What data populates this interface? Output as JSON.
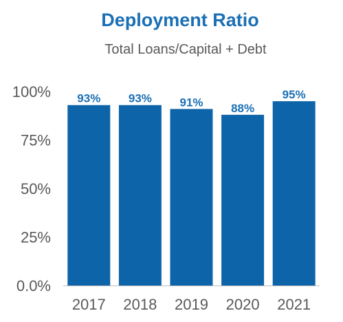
{
  "chart_data": {
    "type": "bar",
    "title": "Deployment Ratio",
    "subtitle": "Total Loans/Capital + Debt",
    "categories": [
      "2017",
      "2018",
      "2019",
      "2020",
      "2021"
    ],
    "values": [
      93,
      93,
      91,
      88,
      95
    ],
    "data_labels": [
      "93%",
      "93%",
      "91%",
      "88%",
      "95%"
    ],
    "y_ticks": [
      {
        "value": 0,
        "label": "0.0%"
      },
      {
        "value": 25,
        "label": "25%"
      },
      {
        "value": 50,
        "label": "50%"
      },
      {
        "value": 75,
        "label": "75%"
      },
      {
        "value": 100,
        "label": "100%"
      }
    ],
    "ylim": [
      0,
      100
    ],
    "grid": false,
    "legend": "none",
    "colors": {
      "bar": "#0e64a8",
      "title": "#1a6fb5",
      "data_label": "#1a6fb5",
      "text": "#595959",
      "axis": "#bfbfbf"
    }
  }
}
